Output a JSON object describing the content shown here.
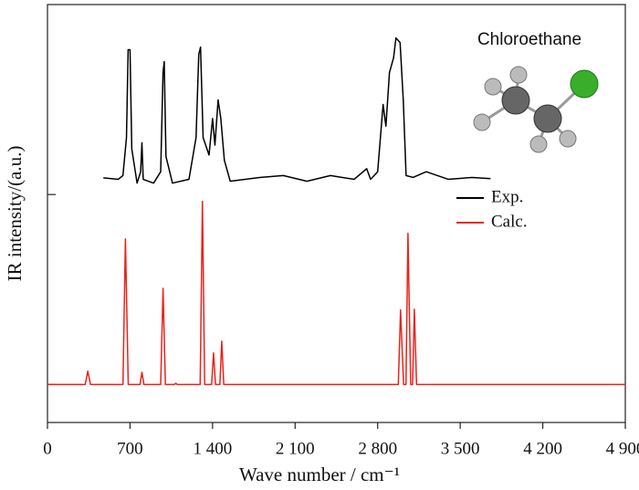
{
  "chart_data": {
    "type": "line",
    "title": "Chloroethane",
    "x_label": "Wave number / cm⁻¹",
    "y_label": "IR intensity/(a.u.)",
    "xlim": [
      0,
      4900
    ],
    "xticks": [
      0,
      700,
      {
        "value": 1400,
        "label": "1 400"
      },
      {
        "value": 2100,
        "label": "2 100"
      },
      {
        "value": 2800,
        "label": "2 800"
      },
      {
        "value": 3500,
        "label": "3 500"
      },
      {
        "value": 4200,
        "label": "4 200"
      },
      {
        "value": 4900,
        "label": "4 900"
      }
    ],
    "ylim": [
      -1,
      10
    ],
    "yticks": [
      0,
      5
    ],
    "series": [
      {
        "name": "Exp.",
        "color": "#000000",
        "x": [
          474,
          600,
          640,
          670,
          684,
          700,
          715,
          760,
          790,
          801,
          812,
          900,
          960,
          980,
          990,
          1005,
          1060,
          1200,
          1260,
          1283,
          1298,
          1320,
          1370,
          1400,
          1420,
          1447,
          1470,
          1500,
          1550,
          1800,
          2000,
          2200,
          2400,
          2600,
          2707,
          2740,
          2800,
          2846,
          2870,
          2900,
          2935,
          2955,
          2990,
          3017,
          3041,
          3100,
          3212,
          3400,
          3600,
          3757
        ],
        "values": [
          5.44,
          5.4,
          5.5,
          6.5,
          8.81,
          8.81,
          6.2,
          5.3,
          5.6,
          6.36,
          5.4,
          5.3,
          5.6,
          8.21,
          8.5,
          6.0,
          5.3,
          5.4,
          6.5,
          8.69,
          8.88,
          6.5,
          6.04,
          7.0,
          6.3,
          7.49,
          7.0,
          5.9,
          5.35,
          5.45,
          5.5,
          5.35,
          5.5,
          5.4,
          5.68,
          5.4,
          5.6,
          7.37,
          6.8,
          8.21,
          8.6,
          9.12,
          9.0,
          7.5,
          5.5,
          5.45,
          5.6,
          5.4,
          5.45,
          5.42
        ]
      },
      {
        "name": "Calc.",
        "color": "#e8231c",
        "x": [
          0,
          320,
          342,
          365,
          640,
          661,
          685,
          785,
          801,
          818,
          960,
          980,
          1000,
          1075,
          1089,
          1100,
          1295,
          1314,
          1333,
          1392,
          1408,
          1425,
          1462,
          1478,
          1495,
          2975,
          2994,
          3020,
          3040,
          3057,
          3080,
          3096,
          3111,
          3130,
          4900
        ],
        "values": [
          0,
          0,
          0.35,
          0,
          0,
          3.83,
          0,
          0,
          0.32,
          0,
          0,
          2.53,
          0,
          0,
          0.03,
          0,
          0,
          4.82,
          0,
          0,
          0.83,
          0,
          0,
          1.14,
          0,
          0,
          1.96,
          0,
          0,
          3.98,
          0,
          0,
          1.98,
          0,
          0
        ]
      }
    ]
  }
}
